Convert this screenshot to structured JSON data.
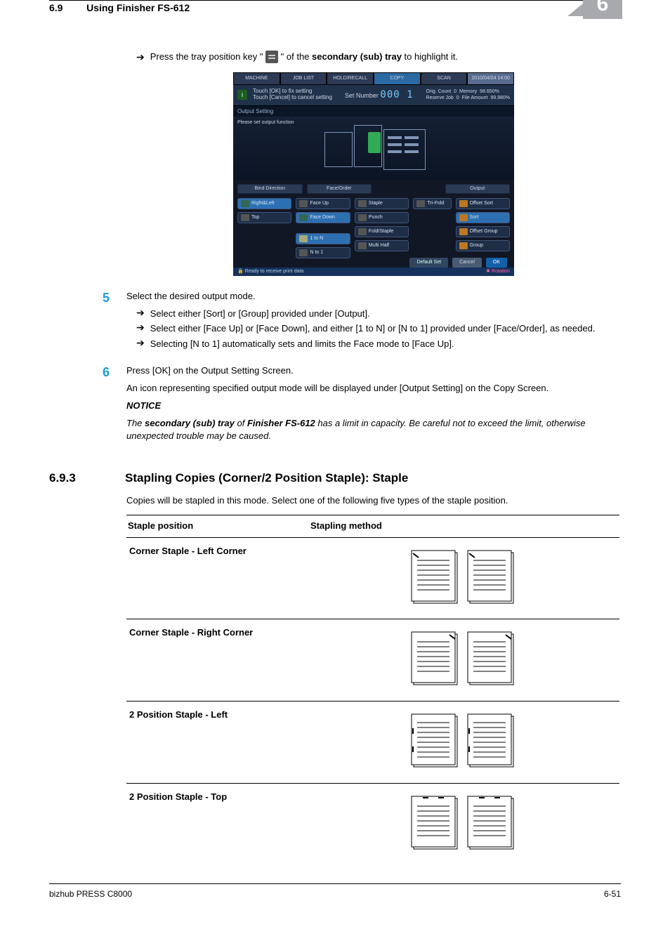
{
  "header": {
    "section_number": "6.9",
    "section_title": "Using Finisher FS-612",
    "chapter_number": "6"
  },
  "intro_line": {
    "prefix": "Press the tray position key \"",
    "suffix": "\" of the ",
    "bold": "secondary (sub) tray",
    "tail": " to highlight it."
  },
  "screenshot": {
    "tabs": [
      "MACHINE",
      "JOB LIST",
      "HOLD/RECALL",
      "COPY",
      "SCAN"
    ],
    "active_tab_index": 3,
    "clock": "2010/04/04 14:00",
    "info_line1": "Touch [OK] to fix setting",
    "info_line2": "Touch [Cancel] to cancel setting",
    "set_number_label": "Set Number",
    "set_number_value": "000 1",
    "status": {
      "orig_count_label": "Orig. Count",
      "orig_count_value": "0",
      "memory_label": "Memory",
      "memory_value": "98.650%",
      "reserve_label": "Reserve Job",
      "reserve_value": "0",
      "file_label": "File Amount",
      "file_value": "99.980%"
    },
    "output_setting_label": "Output Setting",
    "preview_text": "Please set output function",
    "group_headers": [
      "Bind Direction",
      "Face/Order",
      "",
      "Output"
    ],
    "col_bind": [
      "Right&Left",
      "Top"
    ],
    "col_face": [
      "Face Up",
      "Face Down",
      "1 to N",
      "N to 1"
    ],
    "col_mid": [
      "Staple",
      "Punch",
      "Fold/Staple",
      "Multi Half"
    ],
    "col_trifold": "Tri-Fold",
    "col_output": [
      "Offset Sort",
      "Sort",
      "Offset Group",
      "Group"
    ],
    "bottom_buttons": [
      "Default Set",
      "Cancel",
      "OK"
    ],
    "footer_text": "Ready to receive print data",
    "footer_rotation": "Rotation",
    "colors": {
      "bg": "#111725",
      "tab": "#2c3a55",
      "tab_active": "#2b6aa3",
      "clock_bg": "#596c90",
      "info_bg": "#20324a",
      "digits": "#7cc7ff",
      "btn": "#1e2e47",
      "btn_sel": "#2c70b2",
      "ok": "#1360aa",
      "foot": "#14325c"
    }
  },
  "step5": {
    "number": "5",
    "text": "Select the desired output mode.",
    "bullets": [
      "Select either [Sort] or [Group] provided under [Output].",
      "Select either [Face Up] or [Face Down], and either [1 to N] or [N to 1] provided under [Face/Order], as needed.",
      "Selecting [N to 1] automatically sets and limits the Face mode to [Face Up]."
    ]
  },
  "step6": {
    "number": "6",
    "text": "Press [OK] on the Output Setting Screen.",
    "para": "An icon representing specified output mode will be displayed under [Output Setting] on the Copy Screen.",
    "notice_label": "NOTICE",
    "notice_prefix": "The ",
    "notice_bold1": "secondary (sub) tray",
    "notice_mid": " of ",
    "notice_bold2": "Finisher FS-612",
    "notice_suffix": " has a limit in capacity. Be careful not to exceed the limit, otherwise unexpected trouble may be caused."
  },
  "subsection": {
    "number": "6.9.3",
    "title": "Stapling Copies (Corner/2 Position Staple): Staple",
    "intro": "Copies will be stapled in this mode. Select one of the following five types of the staple position."
  },
  "staple_table": {
    "header_left": "Staple position",
    "header_right": "Stapling method",
    "rows": [
      {
        "label": "Corner Staple - Left Corner",
        "variant": "left_corner"
      },
      {
        "label": "Corner Staple - Right Corner",
        "variant": "right_corner"
      },
      {
        "label": "2 Position Staple - Left",
        "variant": "two_left"
      },
      {
        "label": "2 Position Staple - Top",
        "variant": "two_top"
      }
    ],
    "svg_style": {
      "page_stroke": "#000000",
      "page_fill": "#ffffff",
      "line_stroke": "#000000",
      "line_width": 1,
      "staple_width": 2
    }
  },
  "footer": {
    "left": "bizhub PRESS C8000",
    "right": "6-51"
  }
}
